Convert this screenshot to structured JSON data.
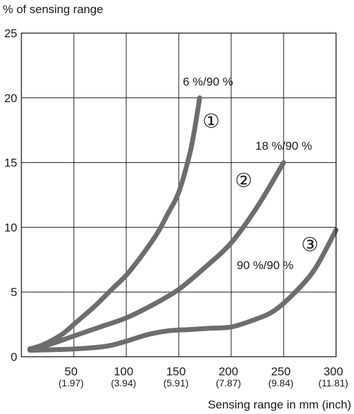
{
  "chart_data": {
    "type": "line",
    "ylabel": "% of sensing range",
    "xlabel": "Sensing range in mm (inch)",
    "xlim": [
      0,
      300
    ],
    "ylim": [
      0,
      25
    ],
    "grid": true,
    "x_ticks": [
      {
        "value": 50,
        "label": "50",
        "sublabel": "(1.97)"
      },
      {
        "value": 100,
        "label": "100",
        "sublabel": "(3.94)"
      },
      {
        "value": 150,
        "label": "150",
        "sublabel": "(5.91)"
      },
      {
        "value": 200,
        "label": "200",
        "sublabel": "(7.87)"
      },
      {
        "value": 250,
        "label": "250",
        "sublabel": "(9.84)"
      },
      {
        "value": 300,
        "label": "300",
        "sublabel": "(11.81)"
      }
    ],
    "y_ticks": [
      {
        "value": 0,
        "label": "0"
      },
      {
        "value": 5,
        "label": "5"
      },
      {
        "value": 10,
        "label": "10"
      },
      {
        "value": 15,
        "label": "15"
      },
      {
        "value": 20,
        "label": "20"
      },
      {
        "value": 25,
        "label": "25"
      }
    ],
    "series_color": "#6d6d6d",
    "series": [
      {
        "marker": "①",
        "annotation": "6 %/90 %",
        "points": [
          [
            8,
            0.6
          ],
          [
            20,
            0.9
          ],
          [
            30,
            1.3
          ],
          [
            40,
            1.8
          ],
          [
            50,
            2.5
          ],
          [
            60,
            3.2
          ],
          [
            70,
            3.9
          ],
          [
            80,
            4.7
          ],
          [
            90,
            5.5
          ],
          [
            100,
            6.3
          ],
          [
            110,
            7.3
          ],
          [
            120,
            8.4
          ],
          [
            130,
            9.6
          ],
          [
            140,
            11.1
          ],
          [
            150,
            12.7
          ],
          [
            160,
            15.5
          ],
          [
            165,
            17.5
          ],
          [
            170,
            20
          ]
        ]
      },
      {
        "marker": "②",
        "annotation": "18 %/90 %",
        "points": [
          [
            8,
            0.6
          ],
          [
            25,
            0.9
          ],
          [
            50,
            1.6
          ],
          [
            75,
            2.3
          ],
          [
            100,
            3.0
          ],
          [
            125,
            4.0
          ],
          [
            150,
            5.2
          ],
          [
            175,
            6.9
          ],
          [
            200,
            8.8
          ],
          [
            225,
            11.6
          ],
          [
            250,
            15
          ]
        ]
      },
      {
        "marker": "③",
        "annotation": "90 %/90 %",
        "points": [
          [
            8,
            0.5
          ],
          [
            50,
            0.6
          ],
          [
            80,
            0.8
          ],
          [
            100,
            1.2
          ],
          [
            120,
            1.7
          ],
          [
            140,
            2.0
          ],
          [
            160,
            2.1
          ],
          [
            180,
            2.2
          ],
          [
            200,
            2.3
          ],
          [
            220,
            2.8
          ],
          [
            240,
            3.5
          ],
          [
            260,
            4.9
          ],
          [
            280,
            6.8
          ],
          [
            300,
            9.8
          ]
        ]
      }
    ]
  }
}
